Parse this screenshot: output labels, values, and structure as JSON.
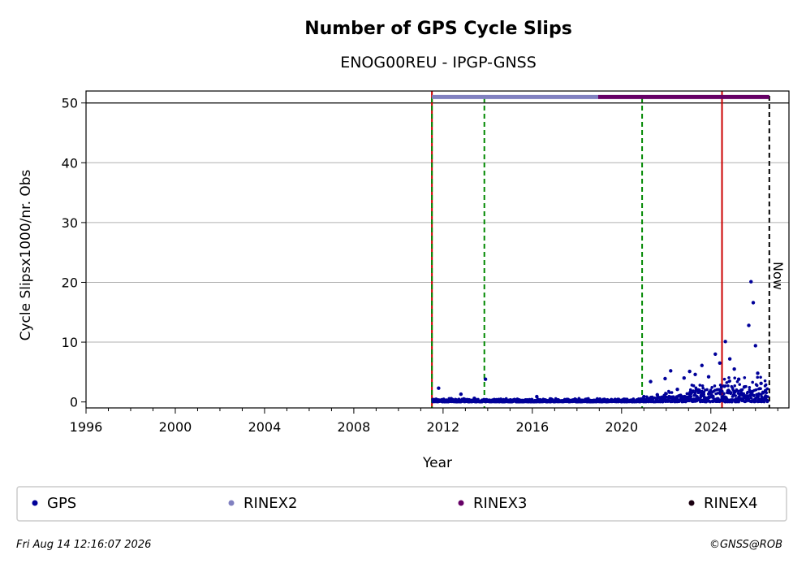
{
  "chart_data": {
    "type": "scatter",
    "title": "Number of GPS Cycle Slips",
    "subtitle": "ENOG00REU - IPGP-GNSS",
    "xlabel": "Year",
    "ylabel": "Cycle Slipsx1000/nr. Obs",
    "xlim": [
      1996,
      2027.5
    ],
    "ylim": [
      -1,
      52
    ],
    "x_ticks": [
      1996,
      2000,
      2004,
      2008,
      2012,
      2016,
      2020,
      2024
    ],
    "y_ticks": [
      0,
      10,
      20,
      30,
      40,
      50
    ],
    "grid": "y",
    "now_label": "Now",
    "now_year": 2026.62,
    "red_lines": [
      2011.5,
      2024.5
    ],
    "green_dashed_lines": [
      2011.5,
      2013.85,
      2020.92
    ],
    "format_bars": [
      {
        "name": "RINEX2",
        "start": 2011.5,
        "end": 2018.95,
        "color": "#8080c0"
      },
      {
        "name": "RINEX3",
        "start": 2018.95,
        "end": 2026.62,
        "color": "#660066"
      }
    ],
    "series": [
      {
        "name": "GPS",
        "color": "#000099",
        "points": [
          [
            2011.55,
            0.4
          ],
          [
            2011.8,
            2.3
          ],
          [
            2012.3,
            0.5
          ],
          [
            2012.8,
            1.3
          ],
          [
            2013.4,
            0.6
          ],
          [
            2013.9,
            3.8
          ],
          [
            2014.5,
            0.4
          ],
          [
            2015.2,
            0.4
          ],
          [
            2016.2,
            0.9
          ],
          [
            2016.8,
            0.5
          ],
          [
            2017.6,
            0.4
          ],
          [
            2018.4,
            0.3
          ],
          [
            2019.2,
            0.2
          ],
          [
            2020.0,
            0.1
          ],
          [
            2020.7,
            0.2
          ],
          [
            2021.0,
            0.9
          ],
          [
            2021.3,
            3.4
          ],
          [
            2021.6,
            1.2
          ],
          [
            2021.95,
            3.9
          ],
          [
            2022.2,
            5.2
          ],
          [
            2022.5,
            2.1
          ],
          [
            2022.8,
            4.0
          ],
          [
            2023.05,
            5.1
          ],
          [
            2023.3,
            4.6
          ],
          [
            2023.6,
            6.1
          ],
          [
            2023.9,
            4.2
          ],
          [
            2024.2,
            8.0
          ],
          [
            2024.4,
            6.5
          ],
          [
            2024.65,
            10.1
          ],
          [
            2024.85,
            7.2
          ],
          [
            2025.05,
            5.5
          ],
          [
            2025.25,
            3.8
          ],
          [
            2025.5,
            2.5
          ],
          [
            2025.7,
            12.8
          ],
          [
            2025.8,
            20.1
          ],
          [
            2025.9,
            16.6
          ],
          [
            2026.0,
            9.4
          ],
          [
            2026.1,
            4.8
          ],
          [
            2026.25,
            3.1
          ],
          [
            2026.45,
            1.9
          ]
        ]
      }
    ],
    "legend": [
      {
        "label": "GPS",
        "color": "#000099"
      },
      {
        "label": "RINEX2",
        "color": "#8080c0"
      },
      {
        "label": "RINEX3",
        "color": "#660066"
      },
      {
        "label": "RINEX4",
        "color": "#1a0010"
      }
    ],
    "legend_placement": "bottom"
  },
  "footer": {
    "timestamp": "Fri Aug 14 12:16:07 2026",
    "credit": "©GNSS@ROB"
  }
}
